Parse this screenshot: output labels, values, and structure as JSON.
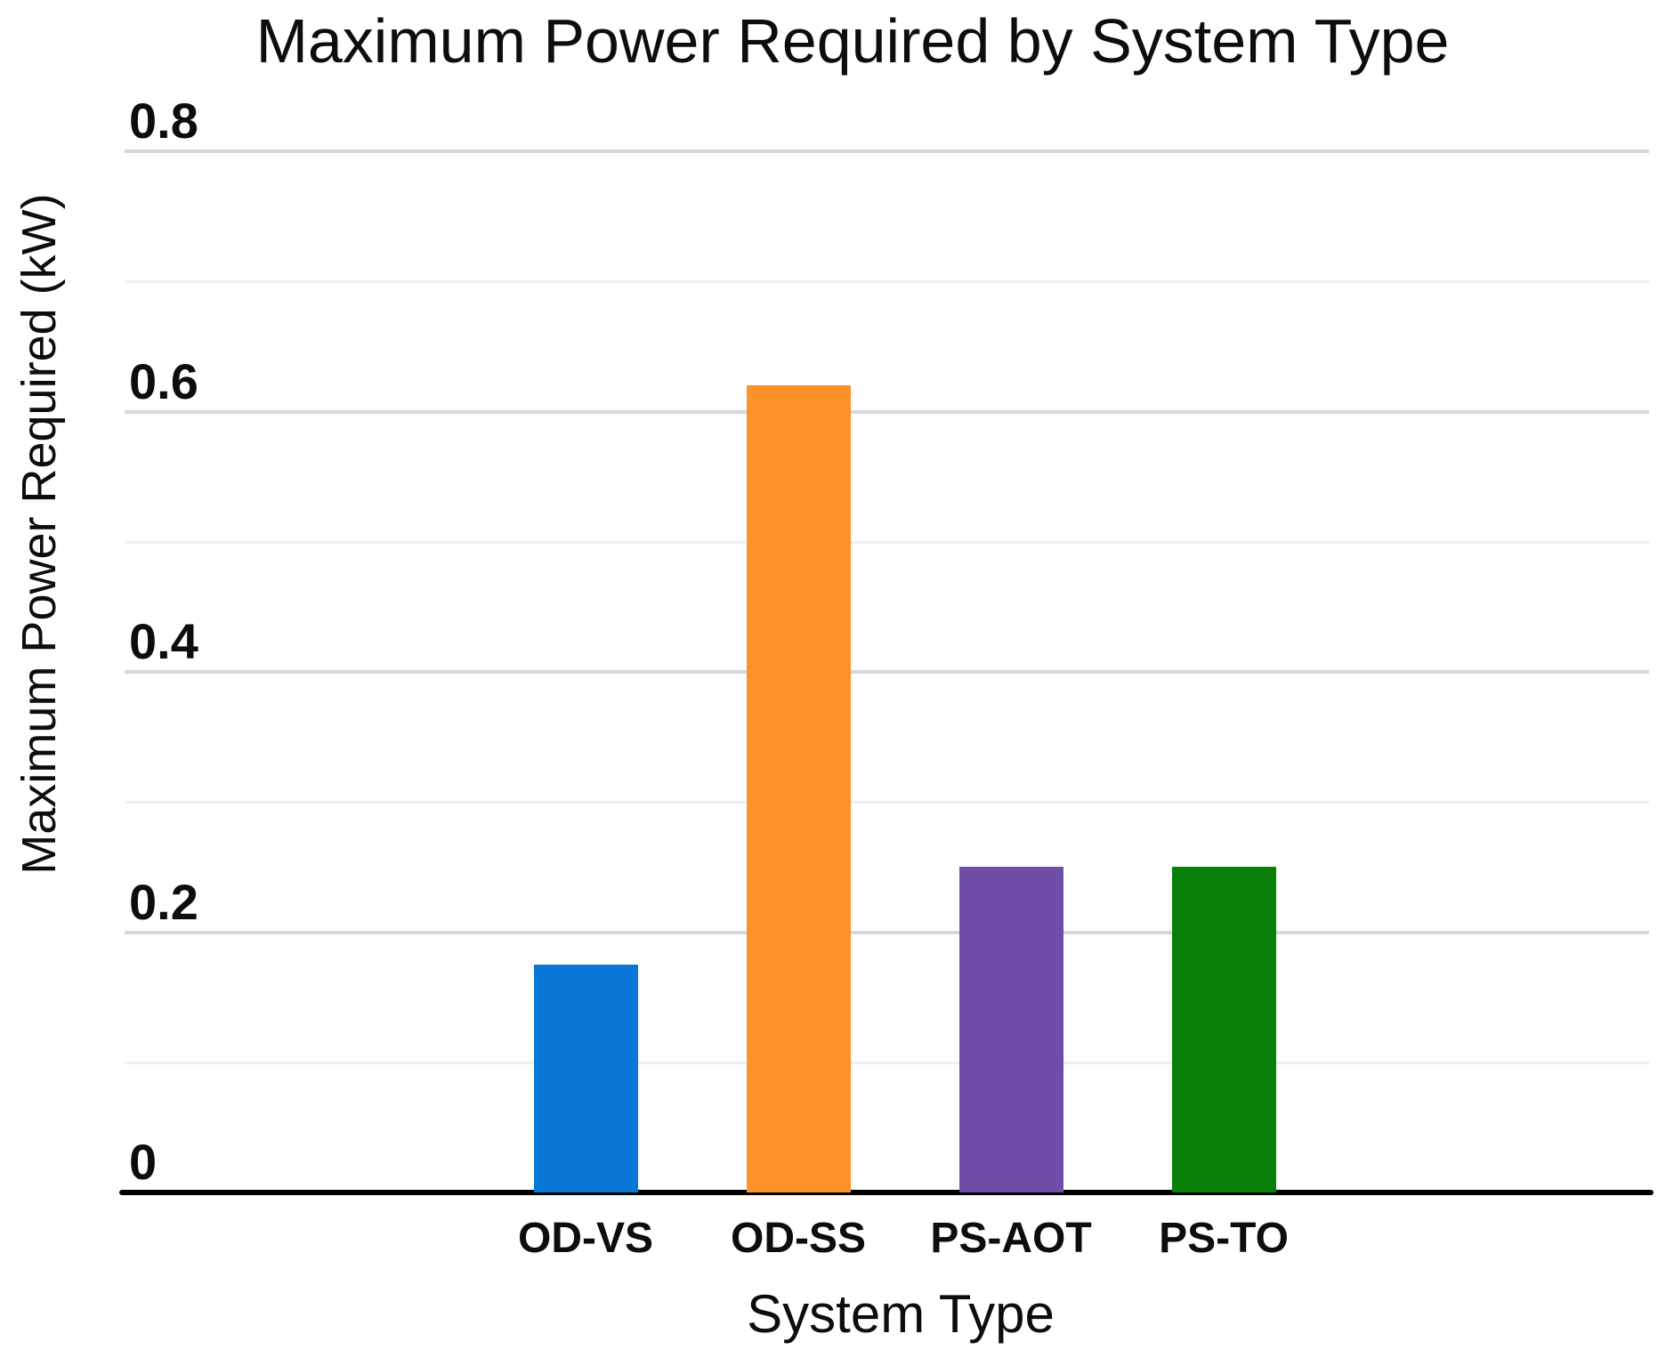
{
  "chart_data": {
    "type": "bar",
    "title": "Maximum Power Required by System Type",
    "xlabel": "System Type",
    "ylabel": "Maximum Power Required (kW)",
    "categories": [
      "OD-VS",
      "OD-SS",
      "PS-AOT",
      "PS-TO"
    ],
    "values": [
      0.175,
      0.62,
      0.25,
      0.25
    ],
    "bar_colors": [
      "#0a78d6",
      "#fd9228",
      "#6f4ea8",
      "#087f08"
    ],
    "ylim": [
      0,
      0.8
    ],
    "ytick_major_values": [
      0,
      0.2,
      0.4,
      0.6,
      0.8
    ],
    "ytick_labels": [
      "0",
      "0.2",
      "0.4",
      "0.6",
      "0.8"
    ],
    "ytick_minor_values": [
      0.1,
      0.3,
      0.5,
      0.7
    ],
    "grid": true,
    "legend": "none",
    "colors": {
      "major_gridline": "#d8d8d8",
      "minor_gridline": "#eeeeee",
      "axis_line": "#000000",
      "text": "#0d0d0d",
      "background": "#ffffff"
    }
  }
}
